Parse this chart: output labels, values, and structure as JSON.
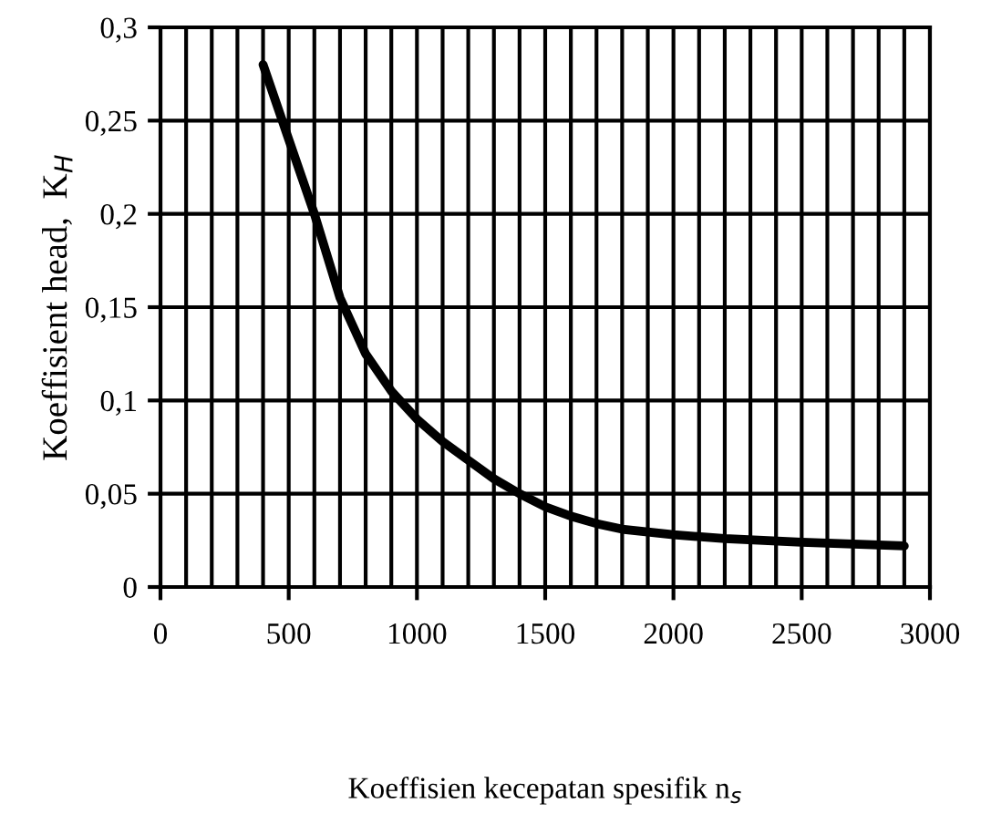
{
  "chart_data": {
    "type": "line",
    "xlabel": "Koeffisien kecepatan spesifik n$_{s}$",
    "ylabel": "Koeffisient head,  K$_{H}$",
    "x": [
      400,
      500,
      600,
      700,
      800,
      900,
      1000,
      1100,
      1200,
      1300,
      1400,
      1500,
      1600,
      1700,
      1800,
      2000,
      2200,
      2500,
      2900
    ],
    "series": [
      {
        "color": "#000000",
        "values": [
          0.28,
          0.24,
          0.2,
          0.155,
          0.125,
          0.105,
          0.09,
          0.078,
          0.068,
          0.058,
          0.05,
          0.043,
          0.038,
          0.034,
          0.031,
          0.028,
          0.026,
          0.024,
          0.022
        ]
      }
    ],
    "xlim": [
      0,
      3000
    ],
    "ylim": [
      0,
      0.3
    ],
    "xticks": [
      0,
      {
        "value": 100,
        "label": null
      },
      {
        "value": 200,
        "label": null
      },
      {
        "value": 300,
        "label": null
      },
      {
        "value": 400,
        "label": null
      },
      500,
      {
        "value": 600,
        "label": null
      },
      {
        "value": 700,
        "label": null
      },
      {
        "value": 800,
        "label": null
      },
      {
        "value": 900,
        "label": null
      },
      1000,
      {
        "value": 1100,
        "label": null
      },
      {
        "value": 1200,
        "label": null
      },
      {
        "value": 1300,
        "label": null
      },
      {
        "value": 1400,
        "label": null
      },
      1500,
      {
        "value": 1600,
        "label": null
      },
      {
        "value": 1700,
        "label": null
      },
      {
        "value": 1800,
        "label": null
      },
      {
        "value": 1900,
        "label": null
      },
      2000,
      {
        "value": 2100,
        "label": null
      },
      {
        "value": 2200,
        "label": null
      },
      {
        "value": 2300,
        "label": null
      },
      {
        "value": 2400,
        "label": null
      },
      2500,
      {
        "value": 2600,
        "label": null
      },
      {
        "value": 2700,
        "label": null
      },
      {
        "value": 2800,
        "label": null
      },
      {
        "value": 2900,
        "label": null
      },
      3000
    ],
    "yticks": [
      0,
      {
        "value": 0.05,
        "label": "0,05"
      },
      {
        "value": 0.1,
        "label": "0,1"
      },
      {
        "value": 0.15,
        "label": "0,15"
      },
      {
        "value": 0.2,
        "label": "0,2"
      },
      {
        "value": 0.25,
        "label": "0,25"
      },
      {
        "value": 0.3,
        "label": "0,3"
      }
    ],
    "grid": true,
    "marker": "none",
    "line_style": "solid"
  }
}
